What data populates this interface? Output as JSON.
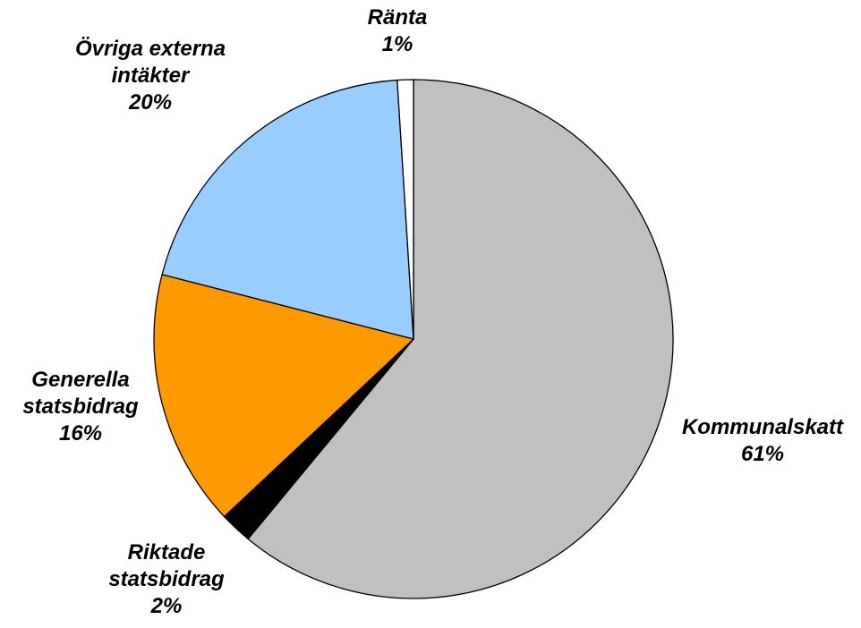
{
  "chart_data": {
    "type": "pie",
    "start_angle_deg": 0,
    "direction": "clockwise",
    "slices": [
      {
        "name": "Kommunalskatt",
        "value": 61,
        "display": "61%",
        "color": "#c0c0c0"
      },
      {
        "name": "Riktade statsbidrag",
        "value": 2,
        "display": "2%",
        "color": "#000000"
      },
      {
        "name": "Generella statsbidrag",
        "value": 16,
        "display": "16%",
        "color": "#ff9900"
      },
      {
        "name": "Övriga externa intäkter",
        "value": 20,
        "display": "20%",
        "color": "#99ccff"
      },
      {
        "name": "Ränta",
        "value": 1,
        "display": "1%",
        "color": "#ffffff"
      }
    ],
    "labels": [
      {
        "lines": [
          "Kommunalskatt",
          "61%"
        ]
      },
      {
        "lines": [
          "Riktade",
          "statsbidrag",
          "2%"
        ]
      },
      {
        "lines": [
          "Generella",
          "statsbidrag",
          "16%"
        ]
      },
      {
        "lines": [
          "Övriga externa",
          "intäkter",
          "20%"
        ]
      },
      {
        "lines": [
          "Ränta",
          "1%"
        ]
      }
    ]
  }
}
